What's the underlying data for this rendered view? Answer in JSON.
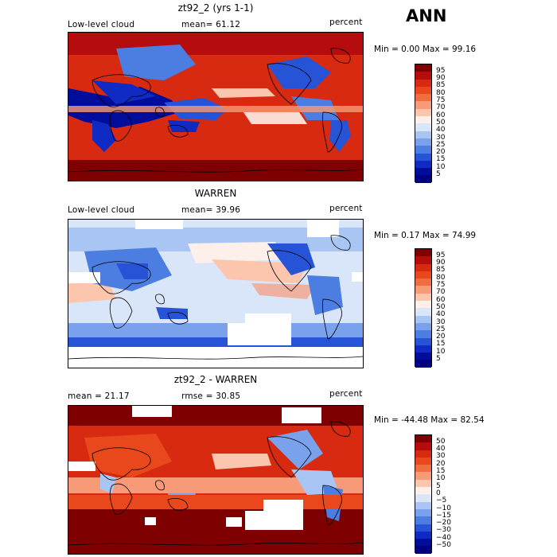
{
  "season": "ANN",
  "colorbars": {
    "absolute": {
      "labels": [
        "95",
        "90",
        "85",
        "80",
        "75",
        "70",
        "60",
        "50",
        "40",
        "30",
        "25",
        "20",
        "15",
        "10",
        "5"
      ],
      "colors": [
        "#7f0000",
        "#b50d0d",
        "#d72a10",
        "#e8481c",
        "#f06d40",
        "#f79a77",
        "#fbc6ad",
        "#fdf0ea",
        "#d9e6fa",
        "#a9c5f4",
        "#7aa2ec",
        "#4c7ee2",
        "#2754d6",
        "#0f2bc3",
        "#000c9a",
        "#000080"
      ]
    },
    "difference": {
      "labels": [
        "50",
        "40",
        "30",
        "20",
        "15",
        "10",
        "5",
        "0",
        "−5",
        "−10",
        "−15",
        "−20",
        "−30",
        "−40",
        "−50"
      ],
      "colors": [
        "#7f0000",
        "#b50d0d",
        "#d72a10",
        "#e8481c",
        "#f06d40",
        "#f79a77",
        "#fbc6ad",
        "#fdf0ea",
        "#d9e6fa",
        "#a9c5f4",
        "#7aa2ec",
        "#4c7ee2",
        "#2754d6",
        "#0f2bc3",
        "#000c9a",
        "#000080"
      ]
    }
  },
  "panels": [
    {
      "title": "zt92_2 (yrs 1-1)",
      "left_label": "Low-level cloud",
      "mid_label": "mean=  61.12",
      "right_label": "percent",
      "minmax": "Min =    0.00 Max =   99.16",
      "colorbar": "absolute"
    },
    {
      "title": "WARREN",
      "left_label": "Low-level cloud",
      "mid_label": "mean=  39.96",
      "right_label": "percent",
      "minmax": "Min =    0.17 Max =   74.99",
      "colorbar": "absolute"
    },
    {
      "title": "zt92_2 - WARREN",
      "left_label": "mean =  21.17",
      "mid_label": "rmse =  30.85",
      "right_label": "percent",
      "minmax": "Min = -44.48 Max =   82.54",
      "colorbar": "difference"
    }
  ],
  "chart_data": {
    "type": "heatmap",
    "variable": "Low-level cloud",
    "units": "percent",
    "season": "ANN",
    "maps": [
      {
        "title": "zt92_2 (yrs 1-1)",
        "mean": 61.12,
        "min": 0.0,
        "max": 99.16,
        "levels": [
          5,
          10,
          15,
          20,
          25,
          30,
          40,
          50,
          60,
          70,
          75,
          80,
          85,
          90,
          95
        ]
      },
      {
        "title": "WARREN",
        "mean": 39.96,
        "min": 0.17,
        "max": 74.99,
        "levels": [
          5,
          10,
          15,
          20,
          25,
          30,
          40,
          50,
          60,
          70,
          75,
          80,
          85,
          90,
          95
        ]
      },
      {
        "title": "zt92_2 - WARREN",
        "mean": 21.17,
        "rmse": 30.85,
        "min": -44.48,
        "max": 82.54,
        "levels": [
          -50,
          -40,
          -30,
          -20,
          -15,
          -10,
          -5,
          0,
          5,
          10,
          15,
          20,
          30,
          40,
          50
        ]
      }
    ]
  }
}
